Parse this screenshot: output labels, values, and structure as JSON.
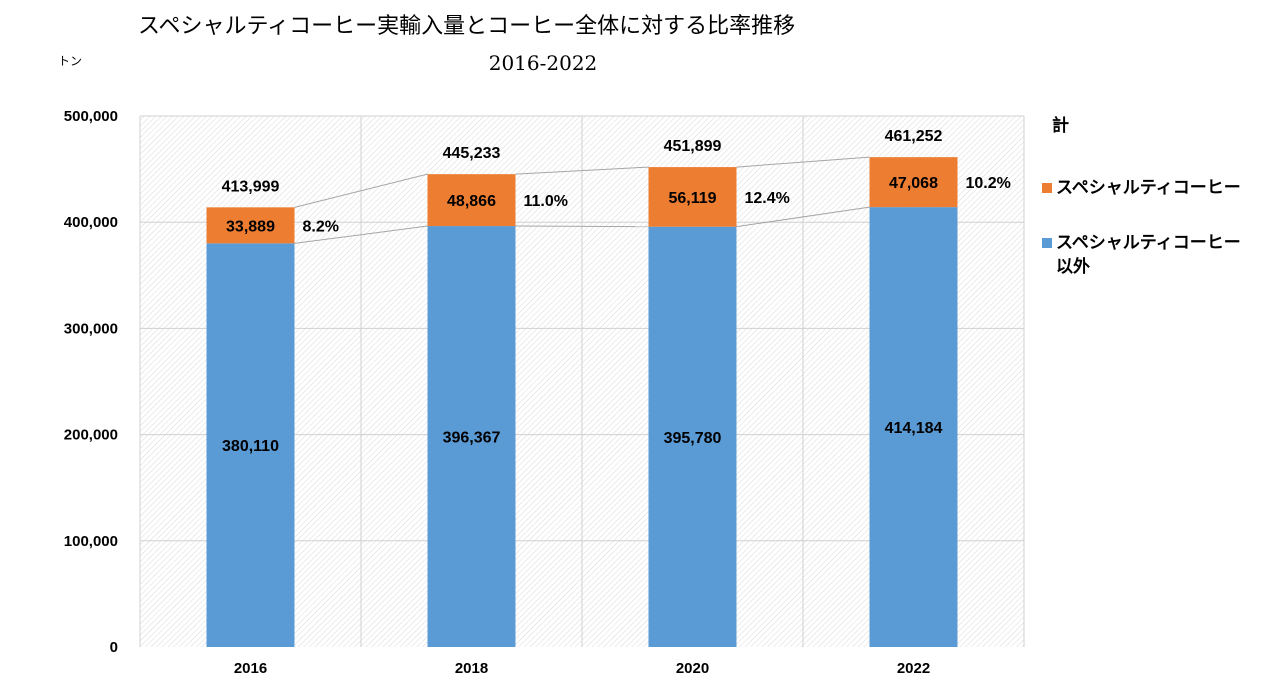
{
  "colors": {
    "specialty": "#ED7D31",
    "other": "#5B9BD5",
    "grid": "#D0D0D0",
    "connector": "#A6A6A6"
  },
  "chart_data": {
    "type": "bar",
    "stacked": true,
    "title": "スペシャルティコーヒー実輸入量とコーヒー全体に対する比率推移",
    "subtitle": "2016-2022",
    "ylabel": "トン",
    "xlabel": "",
    "ylim": [
      0,
      500000
    ],
    "yticks": [
      0,
      100000,
      200000,
      300000,
      400000,
      500000
    ],
    "ytick_labels": [
      "0",
      "100,000",
      "200,000",
      "300,000",
      "400,000",
      "500,000"
    ],
    "categories": [
      "2016",
      "2018",
      "2020",
      "2022"
    ],
    "series": [
      {
        "name": "スペシャルティコーヒー以外",
        "color": "#5B9BD5",
        "values": [
          380110,
          396367,
          395780,
          414184
        ],
        "labels": [
          "380,110",
          "396,367",
          "395,780",
          "414,184"
        ]
      },
      {
        "name": "スペシャルティコーヒー",
        "color": "#ED7D31",
        "values": [
          33889,
          48866,
          56119,
          47068
        ],
        "labels": [
          "33,889",
          "48,866",
          "56,119",
          "47,068"
        ]
      }
    ],
    "totals": {
      "name": "計",
      "values": [
        413999,
        445233,
        451899,
        461252
      ],
      "labels": [
        "413,999",
        "445,233",
        "451,899",
        "461,252"
      ]
    },
    "ratios": [
      "8.2%",
      "11.0%",
      "12.4%",
      "10.2%"
    ],
    "grid": true,
    "series_lines": true,
    "legend": {
      "placement": "right",
      "items": [
        {
          "label": "計",
          "swatch": false
        },
        {
          "label": "スペシャルティコーヒー",
          "swatch": true,
          "color": "#ED7D31"
        },
        {
          "label": "スペシャルティコーヒー",
          "label2": "以外",
          "swatch": true,
          "color": "#5B9BD5"
        }
      ]
    }
  }
}
